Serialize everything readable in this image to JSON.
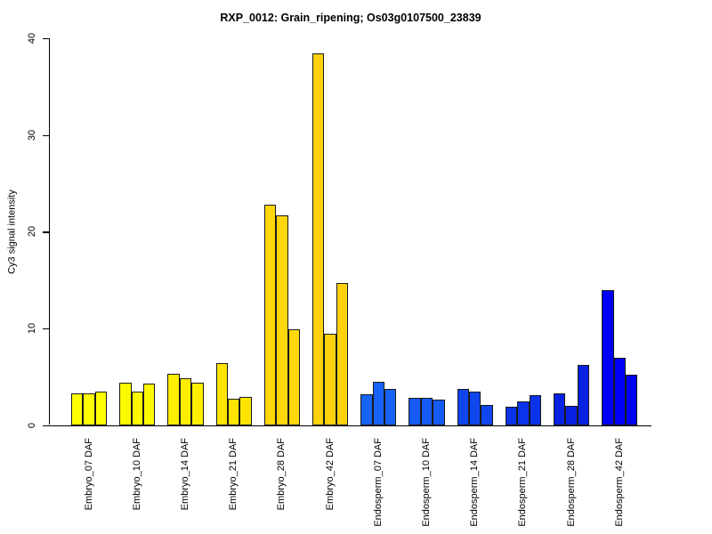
{
  "page": {
    "background_color": "#FFFFFF",
    "text_color": "#000000"
  },
  "chart_data": {
    "type": "bar",
    "title": "RXP_0012: Grain_ripening; Os03g0107500_23839",
    "xlabel": "",
    "ylabel": "Cy3 signal intensity",
    "ylim": [
      0,
      40
    ],
    "yticks": [
      0,
      10,
      20,
      30,
      40
    ],
    "grid": false,
    "legend_position": "none",
    "bars_per_group": 3,
    "bar_border_color": "#1A1A1A",
    "axis_color": "#000000",
    "categories": [
      "Embryo_07 DAF",
      "Embryo_10 DAF",
      "Embryo_14 DAF",
      "Embryo_21 DAF",
      "Embryo_28 DAF",
      "Embryo_42 DAF",
      "Endosperm_07 DAF",
      "Endosperm_10 DAF",
      "Endosperm_14 DAF",
      "Endosperm_21 DAF",
      "Endosperm_28 DAF",
      "Endosperm_42 DAF"
    ],
    "groups": [
      {
        "label": "Embryo_07 DAF",
        "color": "#FFFF00",
        "values": [
          3.3,
          3.3,
          3.5
        ]
      },
      {
        "label": "Embryo_10 DAF",
        "color": "#FFF900",
        "values": [
          4.4,
          3.5,
          4.3
        ]
      },
      {
        "label": "Embryo_14 DAF",
        "color": "#FFEE00",
        "values": [
          5.3,
          4.8,
          4.4
        ]
      },
      {
        "label": "Embryo_21 DAF",
        "color": "#FFE400",
        "values": [
          6.4,
          2.7,
          2.9
        ]
      },
      {
        "label": "Embryo_28 DAF",
        "color": "#FFD70A",
        "values": [
          22.8,
          21.7,
          9.9
        ]
      },
      {
        "label": "Embryo_42 DAF",
        "color": "#FFD20D",
        "values": [
          38.5,
          9.4,
          14.7
        ]
      },
      {
        "label": "Endosperm_07 DAF",
        "color": "#1763F6",
        "values": [
          3.2,
          4.5,
          3.7
        ]
      },
      {
        "label": "Endosperm_10 DAF",
        "color": "#145AF3",
        "values": [
          2.8,
          2.8,
          2.6
        ]
      },
      {
        "label": "Endosperm_14 DAF",
        "color": "#0F46EE",
        "values": [
          3.7,
          3.5,
          2.1
        ]
      },
      {
        "label": "Endosperm_21 DAF",
        "color": "#0B33E9",
        "values": [
          1.9,
          2.4,
          3.1
        ]
      },
      {
        "label": "Endosperm_28 DAF",
        "color": "#0822E4",
        "values": [
          3.3,
          2.0,
          6.2
        ]
      },
      {
        "label": "Endosperm_42 DAF",
        "color": "#0000F5",
        "values": [
          14.0,
          7.0,
          5.2
        ]
      }
    ]
  }
}
